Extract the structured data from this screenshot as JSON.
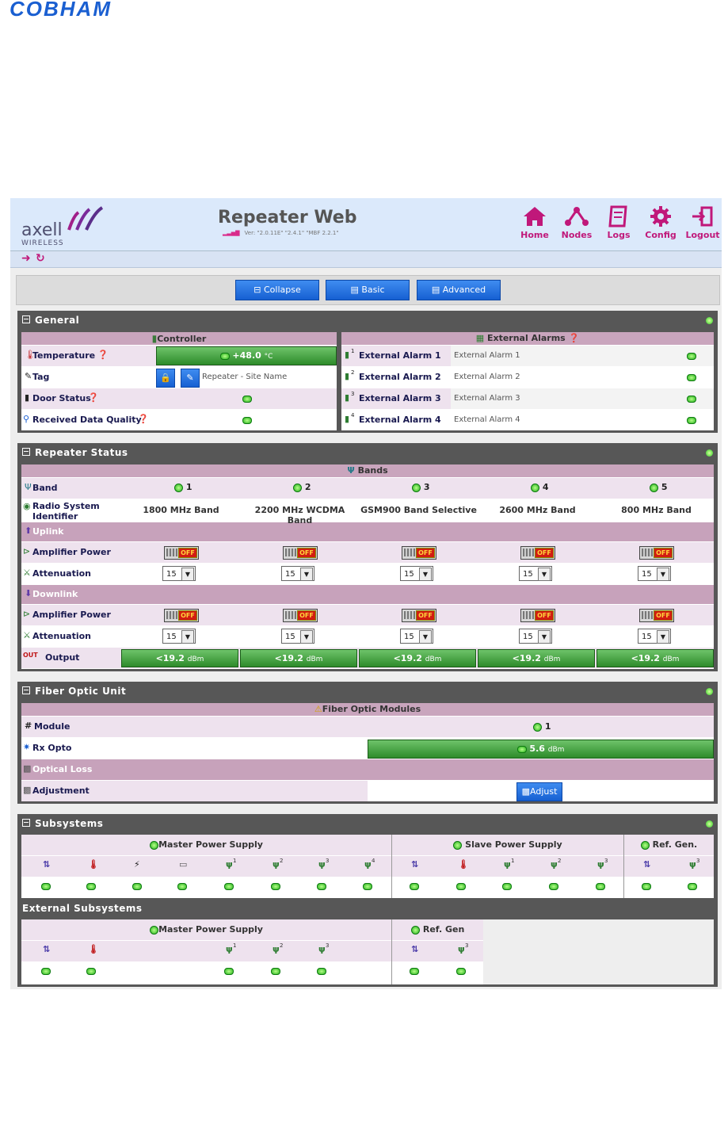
{
  "brand": {
    "cobham": "COBHAM",
    "axell": "axell",
    "wireless": "WIRELESS"
  },
  "header": {
    "title": "Repeater Web",
    "version": "Ver: \"2.0.11E\" \"2.4.1\" \"MBF 2.2.1\""
  },
  "nav": [
    {
      "label": "Home",
      "icon": "home-icon"
    },
    {
      "label": "Nodes",
      "icon": "nodes-icon"
    },
    {
      "label": "Logs",
      "icon": "logs-icon"
    },
    {
      "label": "Config",
      "icon": "gear-icon"
    },
    {
      "label": "Logout",
      "icon": "logout-icon"
    }
  ],
  "toolbar": {
    "collapse": "Collapse",
    "basic": "Basic",
    "advanced": "Advanced"
  },
  "general": {
    "title": "General",
    "controller": "Controller",
    "ext_alarms": "External Alarms",
    "temperature_label": "Temperature",
    "temperature_value": "+48.0",
    "temperature_unit": "°C",
    "tag_label": "Tag",
    "tag_value": "Repeater - Site Name",
    "door_label": "Door Status",
    "rdq_label": "Received Data Quality",
    "alarms": [
      {
        "label": "External Alarm 1",
        "value": "External Alarm 1",
        "idx": "1"
      },
      {
        "label": "External Alarm 2",
        "value": "External Alarm 2",
        "idx": "2"
      },
      {
        "label": "External Alarm 3",
        "value": "External Alarm 3",
        "idx": "3"
      },
      {
        "label": "External Alarm 4",
        "value": "External Alarm 4",
        "idx": "4"
      }
    ]
  },
  "repeater": {
    "title": "Repeater Status",
    "bands_title": "Bands",
    "band_label": "Band",
    "rsi_label": "Radio System Identifier",
    "uplink": "Uplink",
    "downlink": "Downlink",
    "amp_label": "Amplifier Power",
    "att_label": "Attenuation",
    "output_label": "Output",
    "off": "OFF",
    "bands": [
      {
        "num": "1",
        "name": "1800 MHz Band",
        "ul_att": "15",
        "dl_att": "15",
        "output": "<19.2",
        "unit": "dBm"
      },
      {
        "num": "2",
        "name": "2200 MHz WCDMA Band",
        "ul_att": "15",
        "dl_att": "15",
        "output": "<19.2",
        "unit": "dBm"
      },
      {
        "num": "3",
        "name": "GSM900 Band Selective",
        "ul_att": "15",
        "dl_att": "15",
        "output": "<19.2",
        "unit": "dBm"
      },
      {
        "num": "4",
        "name": "2600 MHz Band",
        "ul_att": "15",
        "dl_att": "15",
        "output": "<19.2",
        "unit": "dBm"
      },
      {
        "num": "5",
        "name": "800 MHz Band",
        "ul_att": "15",
        "dl_att": "15",
        "output": "<19.2",
        "unit": "dBm"
      }
    ]
  },
  "fiber": {
    "title": "Fiber Optic Unit",
    "modules_title": "Fiber Optic Modules",
    "module_label": "Module",
    "module_num": "1",
    "rx_label": "Rx Opto",
    "rx_value": "5.6",
    "rx_unit": "dBm",
    "optical_loss": "Optical Loss",
    "adjustment_label": "Adjustment",
    "adjust_button": "Adjust"
  },
  "subsystems": {
    "title": "Subsystems",
    "master": "Master Power Supply",
    "slave": "Slave Power Supply",
    "refgen": "Ref. Gen.",
    "external_title": "External Subsystems",
    "ext_master": "Master Power Supply",
    "ext_refgen": "Ref. Gen",
    "sup": [
      "1",
      "2",
      "3",
      "4"
    ]
  }
}
